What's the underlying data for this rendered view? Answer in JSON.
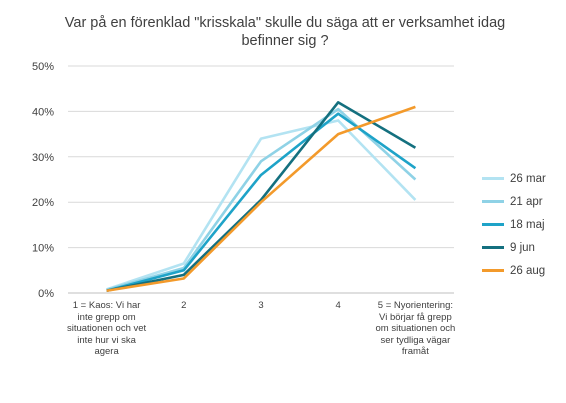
{
  "chart_data": {
    "type": "line",
    "title": "Var på en förenklad \"krisskala\" skulle du säga att er verksamhet idag befinner sig ?",
    "categories": [
      "1 = Kaos: Vi har inte grepp om situationen och vet inte hur vi ska agera",
      "2",
      "3",
      "4",
      "5 = Nyorientering: Vi börjar få grepp om situationen och ser tydliga vägar framåt"
    ],
    "yticks": [
      "0%",
      "10%",
      "20%",
      "30%",
      "40%",
      "50%"
    ],
    "ylim": [
      0,
      50
    ],
    "grid": true,
    "legend_position": "right",
    "series": [
      {
        "name": "26 mar",
        "color": "#b3e3f2",
        "values": [
          0.8,
          6.5,
          34.0,
          38.0,
          20.5
        ]
      },
      {
        "name": "21 apr",
        "color": "#8fd2e6",
        "values": [
          0.7,
          5.5,
          29.0,
          40.5,
          25.0
        ]
      },
      {
        "name": "18 maj",
        "color": "#1ea3c8",
        "values": [
          0.5,
          5.0,
          26.0,
          39.5,
          27.5
        ]
      },
      {
        "name": "9 jun",
        "color": "#14707f",
        "values": [
          0.5,
          4.0,
          20.5,
          42.0,
          32.0
        ]
      },
      {
        "name": "26 aug",
        "color": "#f39a2b",
        "values": [
          0.5,
          3.2,
          20.0,
          35.0,
          41.0
        ]
      }
    ]
  }
}
